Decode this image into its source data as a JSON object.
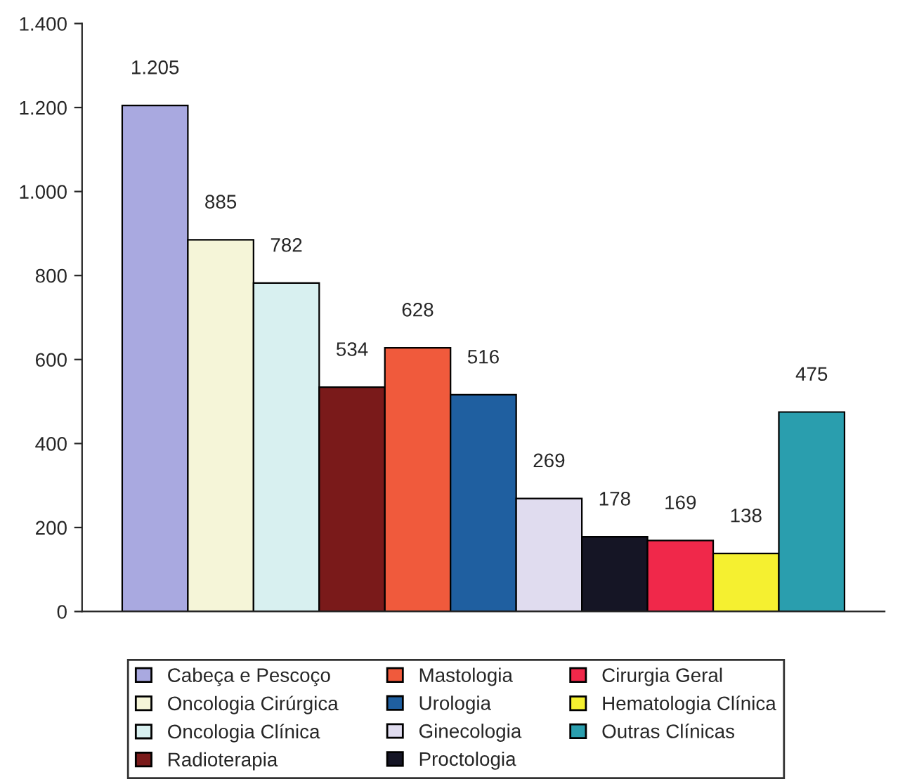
{
  "chart_data": {
    "type": "bar",
    "categories": [
      null
    ],
    "series": [
      {
        "name": "Cabeça e Pescoço",
        "color": "#a9a9e0",
        "values": [
          1205
        ]
      },
      {
        "name": "Oncologia Cirúrgica",
        "color": "#f5f5d8",
        "values": [
          885
        ]
      },
      {
        "name": "Oncologia Clínica",
        "color": "#d8f0f0",
        "values": [
          782
        ]
      },
      {
        "name": "Radioterapia",
        "color": "#7a1a1a",
        "values": [
          534
        ]
      },
      {
        "name": "Mastologia",
        "color": "#f05a3c",
        "values": [
          628
        ]
      },
      {
        "name": "Urologia",
        "color": "#1f5fa0",
        "values": [
          516
        ]
      },
      {
        "name": "Ginecologia",
        "color": "#e0dcef",
        "values": [
          269
        ]
      },
      {
        "name": "Proctologia",
        "color": "#151525",
        "values": [
          178
        ]
      },
      {
        "name": "Cirurgia Geral",
        "color": "#f0284a",
        "values": [
          169
        ]
      },
      {
        "name": "Hematologia Clínica",
        "color": "#f5f030",
        "values": [
          138
        ]
      },
      {
        "name": "Outras Clínicas",
        "color": "#2a9eae",
        "values": [
          475
        ]
      }
    ],
    "ylim": [
      0,
      1400
    ],
    "yticks": [
      {
        "value": 0,
        "label": "0"
      },
      {
        "value": 200,
        "label": "200"
      },
      {
        "value": 400,
        "label": "400"
      },
      {
        "value": 600,
        "label": "600"
      },
      {
        "value": 800,
        "label": "800"
      },
      {
        "value": 1000,
        "label": "1.000"
      },
      {
        "value": 1200,
        "label": "1.200"
      },
      {
        "value": 1400,
        "label": "1.400"
      }
    ],
    "value_labels": [
      "1.205",
      "885",
      "782",
      "534",
      "628",
      "516",
      "269",
      "178",
      "169",
      "138",
      "475"
    ],
    "grid": false,
    "legend": "bottom"
  }
}
